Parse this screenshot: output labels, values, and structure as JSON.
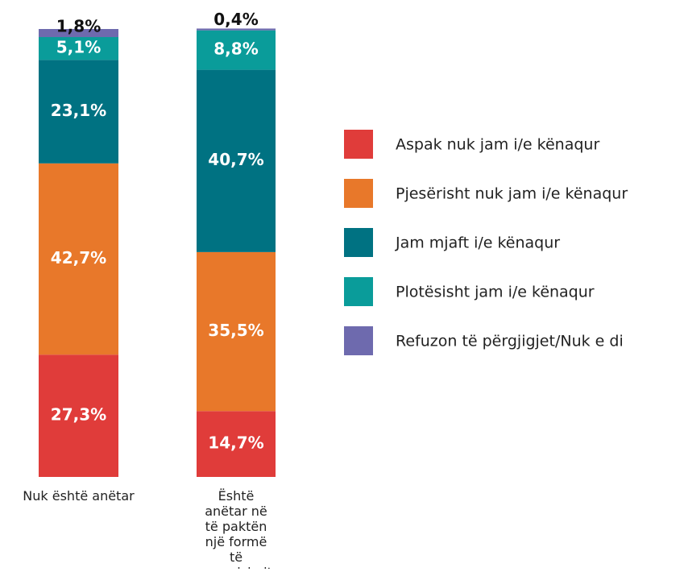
{
  "chart_data": {
    "type": "stacked_bar",
    "categories": [
      "Nuk është anëtar",
      "Është anëtar në të paktën një formë të organizimit"
    ],
    "series": [
      {
        "name": "Aspak nuk jam i/e kënaqur",
        "color": "#e03c3a",
        "values": [
          27.3,
          14.7
        ],
        "value_labels": [
          "27,3%",
          "14,7%"
        ]
      },
      {
        "name": "Pjesërisht nuk jam i/e kënaqur",
        "color": "#e8782a",
        "values": [
          42.7,
          35.5
        ],
        "value_labels": [
          "42,7%",
          "35,5%"
        ]
      },
      {
        "name": "Jam mjaft i/e kënaqur",
        "color": "#007282",
        "values": [
          23.1,
          40.7
        ],
        "value_labels": [
          "23,1%",
          "40,7%"
        ]
      },
      {
        "name": "Plotësisht jam i/e kënaqur",
        "color": "#0a9c9a",
        "values": [
          5.1,
          8.8
        ],
        "value_labels": [
          "5,1%",
          "8,8%"
        ]
      },
      {
        "name": "Refuzon të përgjigjet/Nuk e di",
        "color": "#6e6aae",
        "values": [
          1.8,
          0.4
        ],
        "value_labels": [
          "1,8%",
          "0,4%"
        ]
      }
    ],
    "ylim": [
      0,
      100
    ],
    "legend": "right"
  }
}
